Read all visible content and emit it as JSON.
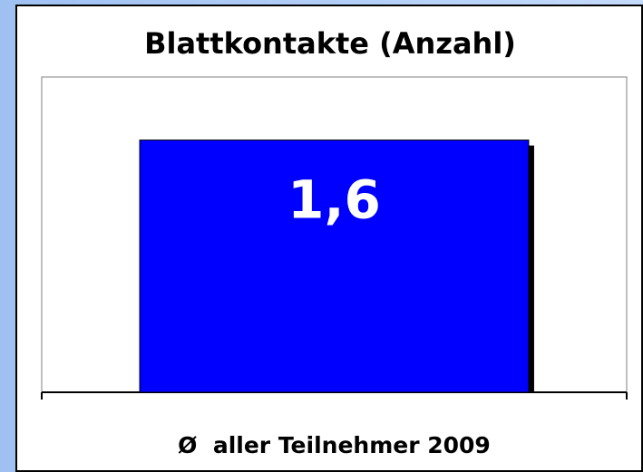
{
  "chart_data": {
    "type": "bar",
    "title": "Blattkontakte (Anzahl)",
    "categories": [
      "Ø  aller Teilnehmer 2009"
    ],
    "values": [
      1.6
    ],
    "value_labels": [
      "1,6"
    ],
    "color": "#0000ff",
    "ylim": [
      0,
      2
    ]
  }
}
